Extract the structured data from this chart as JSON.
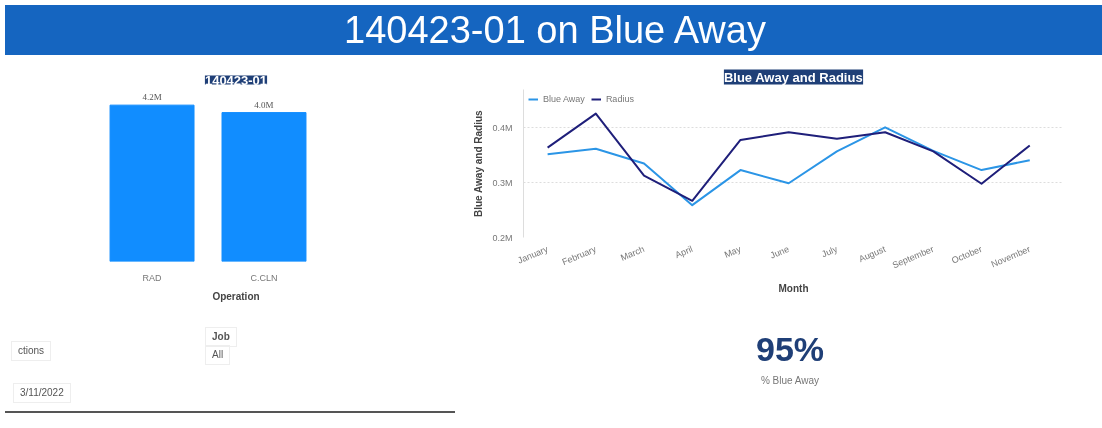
{
  "chart_data": [
    {
      "type": "other",
      "title": "140423-01 on Blue Away",
      "annotations": [
        "ctions",
        "Job",
        "All",
        "3/11/2022"
      ]
    },
    {
      "type": "bar",
      "title": "140423-01",
      "xlabel": "Operation",
      "categories": [
        "RAD",
        "C.CLN"
      ],
      "values": [
        4.2,
        4.0
      ],
      "value_labels": [
        "4.2M",
        "4.0M"
      ],
      "color": "#118dff",
      "tick_labels": "x"
    },
    {
      "type": "line",
      "title": "Blue Away and Radius",
      "xlabel": "Month",
      "ylabel": "Blue Away and Radius",
      "categories": [
        "January",
        "February",
        "March",
        "April",
        "May",
        "June",
        "July",
        "August",
        "September",
        "October",
        "November"
      ],
      "series": [
        {
          "name": "Blue Away",
          "color": "#2b95e6",
          "values": [
            0.352,
            0.362,
            0.335,
            0.259,
            0.323,
            0.299,
            0.357,
            0.401,
            0.358,
            0.323,
            0.341
          ]
        },
        {
          "name": "Radius",
          "color": "#1f1f7a",
          "values": [
            0.364,
            0.426,
            0.313,
            0.267,
            0.378,
            0.392,
            0.38,
            0.392,
            0.357,
            0.298,
            0.368
          ]
        }
      ],
      "ylim": [
        0.2,
        0.47
      ],
      "yticks": [
        {
          "value": 0.2,
          "label": "0.2M"
        },
        {
          "value": 0.3,
          "label": "0.3M"
        },
        {
          "value": 0.4,
          "label": "0.4M"
        }
      ],
      "grid": "y",
      "legend": "top left",
      "marker": "none",
      "line_style": "solid"
    },
    {
      "type": "other",
      "annotations": [
        "95%",
        "% Blue Away"
      ]
    }
  ]
}
